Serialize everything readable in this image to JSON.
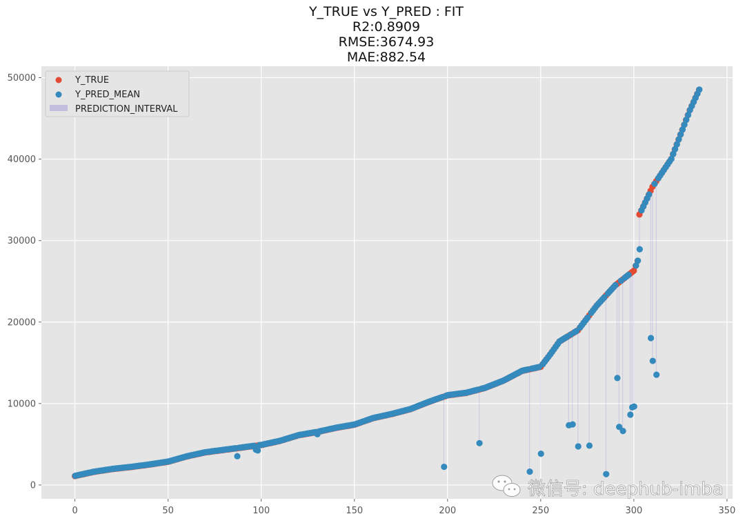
{
  "chart_data": {
    "type": "scatter",
    "title": [
      "Y_TRUE vs Y_PRED : FIT",
      "R2:0.8909",
      "RMSE:3674.93",
      "MAE:882.54"
    ],
    "xlabel": "",
    "ylabel": "",
    "xlim": [
      -18,
      353
    ],
    "ylim": [
      -1700,
      51400
    ],
    "xticks": [
      0,
      50,
      100,
      150,
      200,
      250,
      300,
      350
    ],
    "yticks": [
      0,
      10000,
      20000,
      30000,
      40000,
      50000
    ],
    "grid": true,
    "legend": {
      "position": "top-left",
      "entries": [
        "Y_TRUE",
        "Y_PRED_MEAN",
        "PREDICTION_INTERVAL"
      ]
    },
    "colors": {
      "y_true": "#e24a33",
      "y_pred": "#348abd",
      "interval": "#988ed5",
      "background": "#e5e5e5",
      "grid": "#ffffff"
    },
    "series": [
      {
        "name": "Y_TRUE",
        "x": [
          0,
          10,
          20,
          30,
          40,
          50,
          60,
          70,
          80,
          90,
          100,
          110,
          120,
          130,
          140,
          150,
          160,
          170,
          180,
          190,
          200,
          210,
          220,
          230,
          240,
          250,
          255,
          260,
          270,
          280,
          290,
          300,
          302,
          303,
          310,
          320,
          330,
          335
        ],
        "y": [
          1100,
          1600,
          1950,
          2200,
          2500,
          2850,
          3500,
          4000,
          4300,
          4600,
          4900,
          5400,
          6100,
          6500,
          7000,
          7400,
          8200,
          8700,
          9300,
          10200,
          11000,
          11300,
          11900,
          12800,
          14000,
          14500,
          16000,
          17600,
          19000,
          22000,
          24500,
          26300,
          27500,
          33200,
          36600,
          40000,
          46000,
          48500
        ]
      },
      {
        "name": "Y_PRED_MEAN",
        "x": [
          0,
          10,
          20,
          30,
          40,
          50,
          60,
          70,
          80,
          90,
          100,
          110,
          120,
          130,
          140,
          150,
          160,
          170,
          180,
          190,
          200,
          210,
          220,
          230,
          240,
          250,
          255,
          260,
          270,
          280,
          290,
          300,
          302,
          303,
          310,
          320,
          330,
          335
        ],
        "y": [
          1100,
          1600,
          1950,
          2200,
          2500,
          2850,
          3500,
          4000,
          4300,
          4600,
          4900,
          5400,
          6100,
          6500,
          7000,
          7400,
          8200,
          8700,
          9300,
          10200,
          11000,
          11300,
          11900,
          12800,
          14000,
          14500,
          16000,
          17600,
          19000,
          22000,
          24500,
          26300,
          27500,
          33200,
          36600,
          40000,
          46000,
          48500
        ],
        "outliers": {
          "x": [
            87,
            97,
            98,
            130,
            198,
            217,
            244,
            250,
            265,
            267,
            270,
            276,
            285,
            291,
            292,
            294,
            298,
            299,
            300,
            303,
            309,
            310,
            312
          ],
          "y": [
            3500,
            4300,
            4200,
            6200,
            2200,
            5100,
            1600,
            3800,
            7300,
            7400,
            4700,
            4800,
            1300,
            13100,
            7100,
            6600,
            8600,
            9500,
            9600,
            28900,
            18000,
            15200,
            13500
          ]
        }
      }
    ]
  },
  "watermark": {
    "text": "微信号: deephub-imba",
    "icon": "wechat-icon"
  }
}
